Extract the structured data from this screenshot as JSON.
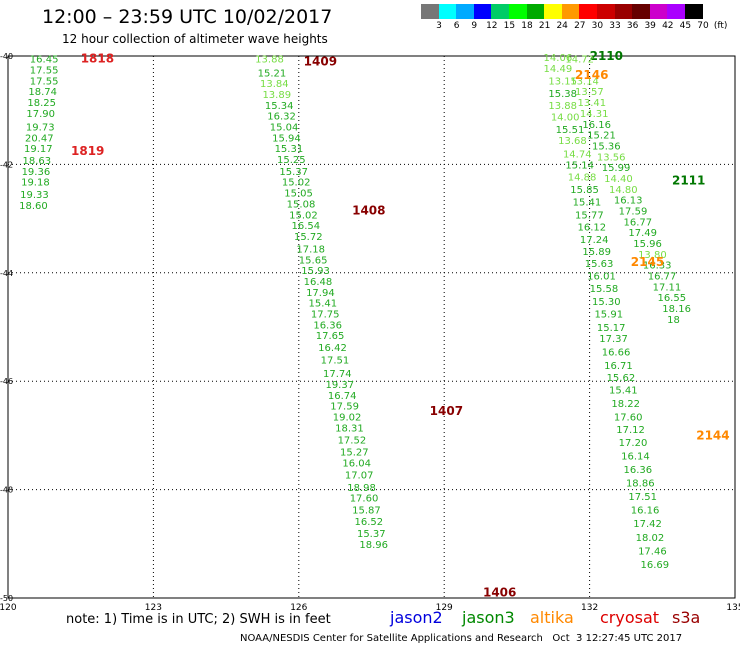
{
  "title": "12:00 – 23:59 UTC 10/02/2017",
  "subtitle": "12 hour collection of altimeter wave heights",
  "colorbar": {
    "colors": [
      "#777777",
      "#00ffff",
      "#00aaff",
      "#0000ff",
      "#00cc66",
      "#00ff00",
      "#00aa00",
      "#ffff00",
      "#ff9900",
      "#ff0000",
      "#cc0000",
      "#990000",
      "#660000",
      "#cc00cc",
      "#aa00ff",
      "#000000"
    ],
    "labels": [
      "3",
      "6",
      "9",
      "12",
      "15",
      "18",
      "21",
      "24",
      "27",
      "30",
      "33",
      "36",
      "39",
      "42",
      "45",
      "70",
      "(ft)"
    ]
  },
  "note": "note:  1) Time is in UTC;  2) SWH is in feet",
  "legend": [
    {
      "name": "jason2",
      "color": "#0000dd"
    },
    {
      "name": "jason3",
      "color": "#008800"
    },
    {
      "name": "altika",
      "color": "#ff8800"
    },
    {
      "name": "cryosat",
      "color": "#dd0000"
    },
    {
      "name": "s3a",
      "color": "#990000"
    }
  ],
  "footer": "NOAA/NESDIS Center for Satellite Applications and Research   Oct  3 12:27:45 UTC 2017",
  "chart_data": {
    "type": "scatter",
    "title": "12:00 – 23:59 UTC 10/02/2017",
    "subtitle": "12 hour collection of altimeter wave heights",
    "xlim": [
      120,
      135
    ],
    "ylim": [
      -50,
      -40
    ],
    "xticks": [
      120,
      123,
      126,
      129,
      132,
      135
    ],
    "yticks": [
      -40,
      -42,
      -44,
      -46,
      -48,
      -50
    ],
    "grid": true,
    "passes": [
      {
        "satellite": "cryosat",
        "color": "#dd2222",
        "time_labels": [
          {
            "text": "1818",
            "x": 121.5,
            "y": -40.05
          },
          {
            "text": "1819",
            "x": 121.3,
            "y": -41.75
          }
        ],
        "points": [
          {
            "x": 120.45,
            "y": -40.05,
            "v": "16.45",
            "c": "#22aa22"
          },
          {
            "x": 120.45,
            "y": -40.25,
            "v": "17.55",
            "c": "#22aa22"
          },
          {
            "x": 120.45,
            "y": -40.45,
            "v": "17.55",
            "c": "#22aa22"
          },
          {
            "x": 120.42,
            "y": -40.65,
            "v": "18.74",
            "c": "#22aa22"
          },
          {
            "x": 120.4,
            "y": -40.85,
            "v": "18.25",
            "c": "#22aa22"
          },
          {
            "x": 120.38,
            "y": -41.05,
            "v": "17.90",
            "c": "#22aa22"
          },
          {
            "x": 120.37,
            "y": -41.3,
            "v": "19.73",
            "c": "#22aa22"
          },
          {
            "x": 120.35,
            "y": -41.5,
            "v": "20.47",
            "c": "#22aa22"
          },
          {
            "x": 120.33,
            "y": -41.7,
            "v": "19.17",
            "c": "#22aa22"
          },
          {
            "x": 120.3,
            "y": -41.92,
            "v": "18.63",
            "c": "#22aa22"
          },
          {
            "x": 120.28,
            "y": -42.12,
            "v": "19.36",
            "c": "#22aa22"
          },
          {
            "x": 120.27,
            "y": -42.32,
            "v": "19.18",
            "c": "#22aa22"
          },
          {
            "x": 120.25,
            "y": -42.55,
            "v": "19.33",
            "c": "#22aa22"
          },
          {
            "x": 120.23,
            "y": -42.75,
            "v": "18.60",
            "c": "#22aa22"
          }
        ]
      },
      {
        "satellite": "s3a",
        "color": "#880000",
        "time_labels": [
          {
            "text": "1409",
            "x": 126.1,
            "y": -40.1
          },
          {
            "text": "1408",
            "x": 127.1,
            "y": -42.85
          },
          {
            "text": "1407",
            "x": 128.7,
            "y": -46.55
          },
          {
            "text": "1406",
            "x": 129.8,
            "y": -49.9
          }
        ],
        "points": [
          {
            "x": 125.1,
            "y": -40.05,
            "v": "13.88",
            "c": "#77dd44"
          },
          {
            "x": 125.15,
            "y": -40.3,
            "v": "15.21",
            "c": "#22aa22"
          },
          {
            "x": 125.2,
            "y": -40.5,
            "v": "13.84",
            "c": "#77dd44"
          },
          {
            "x": 125.25,
            "y": -40.7,
            "v": "13.89",
            "c": "#77dd44"
          },
          {
            "x": 125.3,
            "y": -40.9,
            "v": "15.34",
            "c": "#22aa22"
          },
          {
            "x": 125.35,
            "y": -41.1,
            "v": "16.32",
            "c": "#22aa22"
          },
          {
            "x": 125.4,
            "y": -41.3,
            "v": "15.04",
            "c": "#22aa22"
          },
          {
            "x": 125.45,
            "y": -41.5,
            "v": "15.94",
            "c": "#22aa22"
          },
          {
            "x": 125.5,
            "y": -41.7,
            "v": "15.31",
            "c": "#22aa22"
          },
          {
            "x": 125.55,
            "y": -41.9,
            "v": "15.25",
            "c": "#22aa22"
          },
          {
            "x": 125.6,
            "y": -42.12,
            "v": "15.37",
            "c": "#22aa22"
          },
          {
            "x": 125.65,
            "y": -42.32,
            "v": "15.02",
            "c": "#22aa22"
          },
          {
            "x": 125.7,
            "y": -42.52,
            "v": "15.05",
            "c": "#22aa22"
          },
          {
            "x": 125.75,
            "y": -42.72,
            "v": "15.08",
            "c": "#22aa22"
          },
          {
            "x": 125.8,
            "y": -42.92,
            "v": "15.02",
            "c": "#22aa22"
          },
          {
            "x": 125.85,
            "y": -43.12,
            "v": "16.54",
            "c": "#22aa22"
          },
          {
            "x": 125.9,
            "y": -43.32,
            "v": "15.72",
            "c": "#22aa22"
          },
          {
            "x": 125.95,
            "y": -43.55,
            "v": "17.18",
            "c": "#22aa22"
          },
          {
            "x": 126.0,
            "y": -43.75,
            "v": "15.65",
            "c": "#22aa22"
          },
          {
            "x": 126.05,
            "y": -43.95,
            "v": "15.93",
            "c": "#22aa22"
          },
          {
            "x": 126.1,
            "y": -44.15,
            "v": "16.48",
            "c": "#22aa22"
          },
          {
            "x": 126.15,
            "y": -44.35,
            "v": "17.94",
            "c": "#22aa22"
          },
          {
            "x": 126.2,
            "y": -44.55,
            "v": "15.41",
            "c": "#22aa22"
          },
          {
            "x": 126.25,
            "y": -44.75,
            "v": "17.75",
            "c": "#22aa22"
          },
          {
            "x": 126.3,
            "y": -44.95,
            "v": "16.36",
            "c": "#22aa22"
          },
          {
            "x": 126.35,
            "y": -45.15,
            "v": "17.65",
            "c": "#22aa22"
          },
          {
            "x": 126.4,
            "y": -45.37,
            "v": "16.42",
            "c": "#22aa22"
          },
          {
            "x": 126.45,
            "y": -45.6,
            "v": "17.51",
            "c": "#22aa22"
          },
          {
            "x": 126.5,
            "y": -45.85,
            "v": "17.74",
            "c": "#22aa22"
          },
          {
            "x": 126.55,
            "y": -46.05,
            "v": "19.37",
            "c": "#22aa22"
          },
          {
            "x": 126.6,
            "y": -46.25,
            "v": "16.74",
            "c": "#22aa22"
          },
          {
            "x": 126.65,
            "y": -46.45,
            "v": "17.59",
            "c": "#22aa22"
          },
          {
            "x": 126.7,
            "y": -46.65,
            "v": "19.02",
            "c": "#22aa22"
          },
          {
            "x": 126.75,
            "y": -46.85,
            "v": "18.31",
            "c": "#22aa22"
          },
          {
            "x": 126.8,
            "y": -47.08,
            "v": "17.52",
            "c": "#22aa22"
          },
          {
            "x": 126.85,
            "y": -47.3,
            "v": "15.27",
            "c": "#22aa22"
          },
          {
            "x": 126.9,
            "y": -47.5,
            "v": "16.04",
            "c": "#22aa22"
          },
          {
            "x": 126.95,
            "y": -47.72,
            "v": "17.07",
            "c": "#22aa22"
          },
          {
            "x": 127.0,
            "y": -47.95,
            "v": "18.98",
            "c": "#22aa22"
          },
          {
            "x": 127.05,
            "y": -48.15,
            "v": "17.60",
            "c": "#22aa22"
          },
          {
            "x": 127.1,
            "y": -48.37,
            "v": "15.87",
            "c": "#22aa22"
          },
          {
            "x": 127.15,
            "y": -48.58,
            "v": "16.52",
            "c": "#22aa22"
          },
          {
            "x": 127.2,
            "y": -48.8,
            "v": "15.37",
            "c": "#22aa22"
          },
          {
            "x": 127.25,
            "y": -49.0,
            "v": "18.96",
            "c": "#22aa22"
          }
        ]
      },
      {
        "satellite": "jason3",
        "color": "#007700",
        "time_labels": [
          {
            "text": "2110",
            "x": 132.0,
            "y": -40.0
          },
          {
            "text": "2111",
            "x": 133.7,
            "y": -42.3
          }
        ],
        "points": [
          {
            "x": 131.05,
            "y": -40.02,
            "v": "14.06",
            "c": "#77dd44"
          },
          {
            "x": 131.05,
            "y": -40.22,
            "v": "14.49",
            "c": "#77dd44"
          },
          {
            "x": 131.15,
            "y": -40.45,
            "v": "13.15",
            "c": "#77dd44"
          },
          {
            "x": 131.15,
            "y": -40.68,
            "v": "15.38",
            "c": "#22aa22"
          },
          {
            "x": 131.15,
            "y": -40.9,
            "v": "13.88",
            "c": "#77dd44"
          },
          {
            "x": 131.2,
            "y": -41.12,
            "v": "14.00",
            "c": "#77dd44"
          },
          {
            "x": 131.3,
            "y": -41.35,
            "v": "15.51",
            "c": "#22aa22"
          },
          {
            "x": 131.35,
            "y": -41.55,
            "v": "13.68",
            "c": "#77dd44"
          },
          {
            "x": 131.45,
            "y": -41.8,
            "v": "14.74",
            "c": "#77dd44"
          },
          {
            "x": 131.5,
            "y": -42.0,
            "v": "15.14",
            "c": "#22aa22"
          },
          {
            "x": 131.55,
            "y": -42.22,
            "v": "14.88",
            "c": "#77dd44"
          },
          {
            "x": 131.6,
            "y": -42.45,
            "v": "15.85",
            "c": "#22aa22"
          },
          {
            "x": 131.65,
            "y": -42.68,
            "v": "15.41",
            "c": "#22aa22"
          },
          {
            "x": 131.7,
            "y": -42.92,
            "v": "15.77",
            "c": "#22aa22"
          },
          {
            "x": 131.75,
            "y": -43.15,
            "v": "16.12",
            "c": "#22aa22"
          },
          {
            "x": 131.8,
            "y": -43.38,
            "v": "17.24",
            "c": "#22aa22"
          },
          {
            "x": 131.85,
            "y": -43.6,
            "v": "15.89",
            "c": "#22aa22"
          },
          {
            "x": 131.9,
            "y": -43.82,
            "v": "15.63",
            "c": "#22aa22"
          },
          {
            "x": 131.95,
            "y": -44.05,
            "v": "16.01",
            "c": "#22aa22"
          },
          {
            "x": 132.0,
            "y": -44.28,
            "v": "15.58",
            "c": "#22aa22"
          },
          {
            "x": 132.05,
            "y": -44.52,
            "v": "15.30",
            "c": "#22aa22"
          },
          {
            "x": 132.1,
            "y": -44.75,
            "v": "15.91",
            "c": "#22aa22"
          },
          {
            "x": 132.15,
            "y": -45.0,
            "v": "15.17",
            "c": "#22aa22"
          },
          {
            "x": 132.2,
            "y": -45.2,
            "v": "17.37",
            "c": "#22aa22"
          },
          {
            "x": 132.25,
            "y": -45.45,
            "v": "16.66",
            "c": "#22aa22"
          },
          {
            "x": 132.3,
            "y": -45.7,
            "v": "16.71",
            "c": "#22aa22"
          },
          {
            "x": 132.35,
            "y": -45.92,
            "v": "15.62",
            "c": "#22aa22"
          },
          {
            "x": 132.4,
            "y": -46.15,
            "v": "15.41",
            "c": "#22aa22"
          },
          {
            "x": 132.45,
            "y": -46.4,
            "v": "18.22",
            "c": "#22aa22"
          },
          {
            "x": 132.5,
            "y": -46.65,
            "v": "17.60",
            "c": "#22aa22"
          },
          {
            "x": 132.55,
            "y": -46.88,
            "v": "17.12",
            "c": "#22aa22"
          },
          {
            "x": 132.6,
            "y": -47.12,
            "v": "17.20",
            "c": "#22aa22"
          },
          {
            "x": 132.65,
            "y": -47.37,
            "v": "16.14",
            "c": "#22aa22"
          },
          {
            "x": 132.7,
            "y": -47.62,
            "v": "16.36",
            "c": "#22aa22"
          },
          {
            "x": 132.75,
            "y": -47.87,
            "v": "18.86",
            "c": "#22aa22"
          },
          {
            "x": 132.8,
            "y": -48.12,
            "v": "17.51",
            "c": "#22aa22"
          },
          {
            "x": 132.85,
            "y": -48.37,
            "v": "16.16",
            "c": "#22aa22"
          },
          {
            "x": 132.9,
            "y": -48.62,
            "v": "17.42",
            "c": "#22aa22"
          },
          {
            "x": 132.95,
            "y": -48.87,
            "v": "18.02",
            "c": "#22aa22"
          },
          {
            "x": 133.0,
            "y": -49.12,
            "v": "17.46",
            "c": "#22aa22"
          },
          {
            "x": 133.05,
            "y": -49.37,
            "v": "16.69",
            "c": "#22aa22"
          }
        ]
      },
      {
        "satellite": "jason3",
        "color": "#007700",
        "time_labels": [],
        "points": [
          {
            "x": 131.5,
            "y": -40.05,
            "v": "14.72",
            "c": "#77dd44"
          },
          {
            "x": 131.6,
            "y": -40.45,
            "v": "13.14",
            "c": "#77dd44"
          },
          {
            "x": 131.7,
            "y": -40.65,
            "v": "13.57",
            "c": "#77dd44"
          },
          {
            "x": 131.75,
            "y": -40.85,
            "v": "13.41",
            "c": "#77dd44"
          },
          {
            "x": 131.8,
            "y": -41.05,
            "v": "14.31",
            "c": "#77dd44"
          },
          {
            "x": 131.85,
            "y": -41.25,
            "v": "16.16",
            "c": "#22aa22"
          },
          {
            "x": 131.95,
            "y": -41.45,
            "v": "15.21",
            "c": "#22aa22"
          },
          {
            "x": 132.05,
            "y": -41.65,
            "v": "15.36",
            "c": "#22aa22"
          },
          {
            "x": 132.15,
            "y": -41.85,
            "v": "13.56",
            "c": "#77dd44"
          },
          {
            "x": 132.25,
            "y": -42.05,
            "v": "15.99",
            "c": "#22aa22"
          },
          {
            "x": 132.3,
            "y": -42.25,
            "v": "14.40",
            "c": "#77dd44"
          },
          {
            "x": 132.4,
            "y": -42.45,
            "v": "14.80",
            "c": "#77dd44"
          },
          {
            "x": 132.5,
            "y": -42.65,
            "v": "16.13",
            "c": "#22aa22"
          },
          {
            "x": 132.6,
            "y": -42.85,
            "v": "17.59",
            "c": "#22aa22"
          },
          {
            "x": 132.7,
            "y": -43.05,
            "v": "16.77",
            "c": "#22aa22"
          },
          {
            "x": 132.8,
            "y": -43.25,
            "v": "17.49",
            "c": "#22aa22"
          },
          {
            "x": 132.9,
            "y": -43.45,
            "v": "15.96",
            "c": "#22aa22"
          },
          {
            "x": 133.0,
            "y": -43.65,
            "v": "13.80",
            "c": "#77dd44"
          },
          {
            "x": 133.1,
            "y": -43.85,
            "v": "16.33",
            "c": "#22aa22"
          },
          {
            "x": 133.2,
            "y": -44.05,
            "v": "16.77",
            "c": "#22aa22"
          },
          {
            "x": 133.3,
            "y": -44.25,
            "v": "17.11",
            "c": "#22aa22"
          },
          {
            "x": 133.4,
            "y": -44.45,
            "v": "16.55",
            "c": "#22aa22"
          },
          {
            "x": 133.5,
            "y": -44.65,
            "v": "18.16",
            "c": "#22aa22"
          },
          {
            "x": 133.6,
            "y": -44.85,
            "v": "18",
            "c": "#22aa22"
          }
        ]
      },
      {
        "satellite": "altika",
        "color": "#ff8800",
        "time_labels": [
          {
            "text": "2146",
            "x": 131.7,
            "y": -40.35
          },
          {
            "text": "2145",
            "x": 132.85,
            "y": -43.8
          },
          {
            "text": "2144",
            "x": 134.2,
            "y": -47.0
          }
        ],
        "points": []
      }
    ]
  }
}
